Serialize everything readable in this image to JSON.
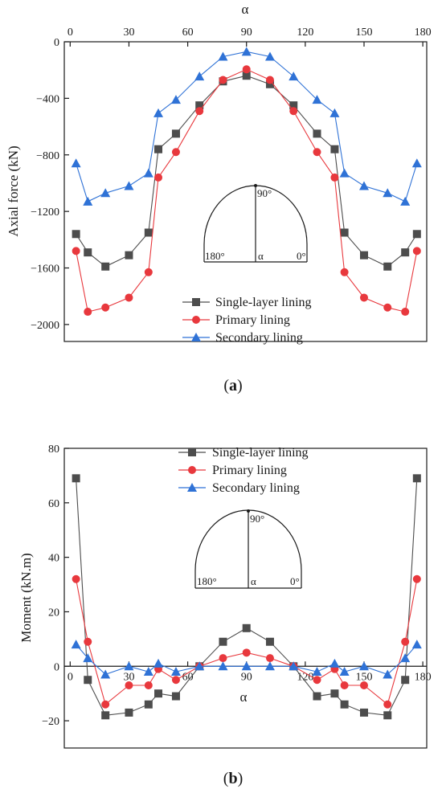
{
  "colors": {
    "single": "#4d4d4d",
    "primary": "#e8383d",
    "secondary": "#2f72d6",
    "axis": "#1a1a1a"
  },
  "panels": [
    {
      "label_bold": "a",
      "label_open": "(",
      "label_close": ")"
    },
    {
      "label_bold": "b",
      "label_open": "(",
      "label_close": ")"
    }
  ],
  "chart_data": [
    {
      "type": "line",
      "id": "a",
      "xlabel": "α",
      "ylabel": "Axial force (kN)",
      "x_axis_position": "top",
      "xlim": [
        -3,
        182
      ],
      "ylim": [
        -2120,
        0
      ],
      "xticks": [
        0,
        30,
        60,
        90,
        120,
        150,
        180
      ],
      "xtick_labels": [
        "0",
        "30",
        "60",
        "90",
        "120",
        "150",
        "180"
      ],
      "yticks": [
        0,
        -400,
        -800,
        -1200,
        -1600,
        -2000
      ],
      "ytick_labels": [
        "0",
        "−400",
        "−800",
        "−1200",
        "−1600",
        "−2000"
      ],
      "x": [
        3,
        9,
        18,
        30,
        40,
        45,
        54,
        66,
        78,
        90,
        102,
        114,
        126,
        135,
        140,
        150,
        162,
        171,
        177
      ],
      "series": [
        {
          "name": "Single-layer lining",
          "marker": "square",
          "color_key": "single",
          "values": [
            -1360,
            -1490,
            -1590,
            -1510,
            -1350,
            -760,
            -650,
            -450,
            -280,
            -240,
            -300,
            -450,
            -650,
            -760,
            -1350,
            -1510,
            -1590,
            -1490,
            -1360
          ]
        },
        {
          "name": "Primary lining",
          "marker": "circle",
          "color_key": "primary",
          "values": [
            -1480,
            -1910,
            -1880,
            -1810,
            -1630,
            -960,
            -780,
            -490,
            -270,
            -195,
            -270,
            -490,
            -780,
            -960,
            -1630,
            -1810,
            -1880,
            -1910,
            -1480
          ]
        },
        {
          "name": "Secondary lining",
          "marker": "triangle",
          "color_key": "secondary",
          "values": [
            -860,
            -1130,
            -1070,
            -1020,
            -930,
            -505,
            -410,
            -245,
            -105,
            -70,
            -105,
            -245,
            -410,
            -505,
            -930,
            -1020,
            -1070,
            -1130,
            -860
          ]
        }
      ],
      "legend": {
        "position": "bottom-center"
      },
      "inset": {
        "top_label": "90°",
        "left_label": "180°",
        "center_label": "α",
        "right_label": "0°"
      },
      "grid": false
    },
    {
      "type": "line",
      "id": "b",
      "xlabel": "α",
      "ylabel": "Moment (kN.m)",
      "x_axis_position": "zero-line",
      "xlim": [
        -3,
        182
      ],
      "ylim": [
        -30,
        80
      ],
      "xticks": [
        0,
        30,
        60,
        90,
        120,
        150,
        180
      ],
      "xtick_labels": [
        "0",
        "30",
        "60",
        "90",
        "120",
        "150",
        "180"
      ],
      "yticks": [
        80,
        60,
        40,
        20,
        0,
        -20
      ],
      "ytick_labels": [
        "80",
        "60",
        "40",
        "20",
        "0",
        "−20"
      ],
      "x": [
        3,
        9,
        18,
        30,
        40,
        45,
        54,
        66,
        78,
        90,
        102,
        114,
        126,
        135,
        140,
        150,
        162,
        171,
        177
      ],
      "series": [
        {
          "name": "Single-layer lining",
          "marker": "square",
          "color_key": "single",
          "values": [
            69,
            -5,
            -18,
            -17,
            -14,
            -10,
            -11,
            0,
            9,
            14,
            9,
            0,
            -11,
            -10,
            -14,
            -17,
            -18,
            -5,
            69
          ]
        },
        {
          "name": "Primary lining",
          "marker": "circle",
          "color_key": "primary",
          "values": [
            32,
            9,
            -14,
            -7,
            -7,
            -1,
            -5,
            0,
            3,
            5,
            3,
            0,
            -5,
            -1,
            -7,
            -7,
            -14,
            9,
            32
          ]
        },
        {
          "name": "Secondary lining",
          "marker": "triangle",
          "color_key": "secondary",
          "values": [
            8,
            3,
            -3,
            0,
            -2,
            1,
            -2,
            0,
            0,
            0,
            0,
            0,
            -2,
            1,
            -2,
            0,
            -3,
            3,
            8
          ]
        }
      ],
      "legend": {
        "position": "top-center"
      },
      "inset": {
        "top_label": "90°",
        "left_label": "180°",
        "center_label": "α",
        "right_label": "0°"
      },
      "grid": false
    }
  ]
}
